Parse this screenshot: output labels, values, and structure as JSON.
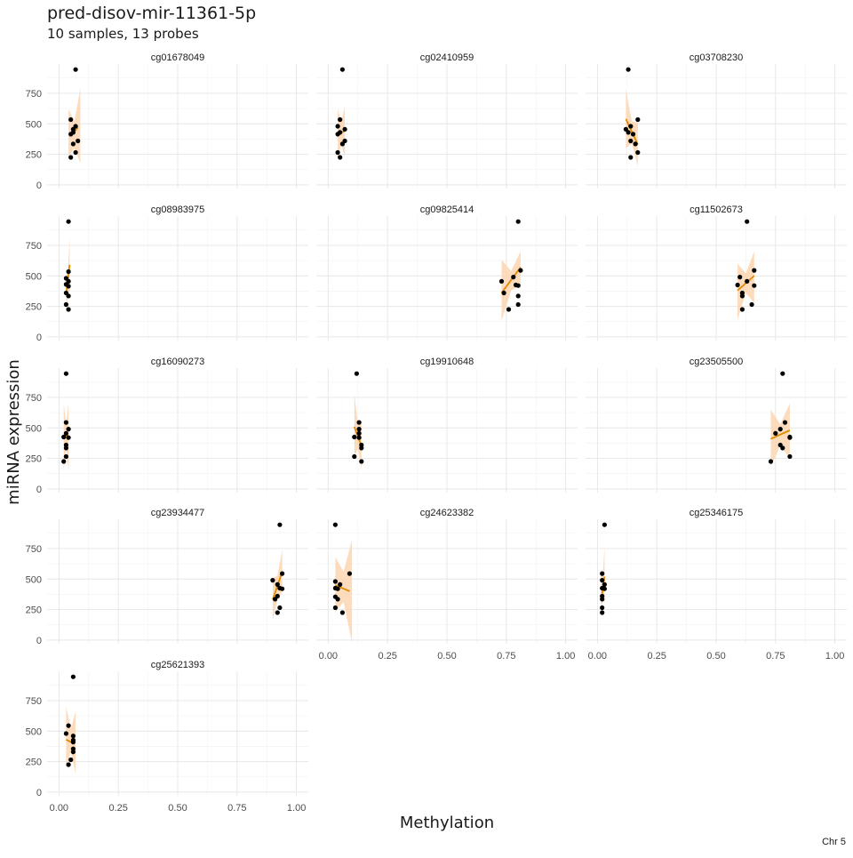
{
  "chart_data": {
    "type": "scatter",
    "title": "pred-disov-mir-11361-5p",
    "subtitle": "10 samples, 13 probes",
    "xlabel": "Methylation",
    "ylabel": "miRNA expression",
    "caption": "Chr 5",
    "xlim": [
      -0.05,
      1.05
    ],
    "ylim": [
      -30,
      990
    ],
    "x_ticks": [
      0.0,
      0.25,
      0.5,
      0.75,
      1.0
    ],
    "x_tick_labels": [
      "0.00",
      "0.25",
      "0.50",
      "0.75",
      "1.00"
    ],
    "y_ticks": [
      0,
      250,
      500,
      750
    ],
    "y_tick_labels": [
      "0",
      "250",
      "500",
      "750"
    ],
    "grid": true,
    "fit_color": "#e08a00",
    "band_color": "#fdd5b1",
    "point_color": "#000000",
    "panels": [
      {
        "name": "cg01678049",
        "points": [
          [
            0.07,
            945
          ],
          [
            0.05,
            535
          ],
          [
            0.07,
            480
          ],
          [
            0.06,
            455
          ],
          [
            0.06,
            430
          ],
          [
            0.05,
            415
          ],
          [
            0.08,
            360
          ],
          [
            0.06,
            335
          ],
          [
            0.07,
            265
          ],
          [
            0.05,
            225
          ]
        ],
        "fit": {
          "x0": 0.05,
          "y0": 400,
          "x1": 0.08,
          "y1": 470
        },
        "band": {
          "x0": 0.04,
          "x1": 0.09,
          "lo0": 230,
          "hi0": 620,
          "lo1": 180,
          "hi1": 790,
          "lomid": 300,
          "himid": 520
        }
      },
      {
        "name": "cg02410959",
        "points": [
          [
            0.06,
            945
          ],
          [
            0.05,
            535
          ],
          [
            0.04,
            480
          ],
          [
            0.07,
            455
          ],
          [
            0.05,
            430
          ],
          [
            0.04,
            415
          ],
          [
            0.07,
            360
          ],
          [
            0.06,
            335
          ],
          [
            0.04,
            265
          ],
          [
            0.05,
            225
          ]
        ],
        "fit": {
          "x0": 0.04,
          "y0": 420,
          "x1": 0.07,
          "y1": 440
        },
        "band": {
          "x0": 0.04,
          "x1": 0.07,
          "lo0": 220,
          "hi0": 620,
          "lo1": 230,
          "hi1": 640,
          "lomid": 330,
          "himid": 520
        }
      },
      {
        "name": "cg03708230",
        "points": [
          [
            0.13,
            945
          ],
          [
            0.17,
            535
          ],
          [
            0.12,
            455
          ],
          [
            0.14,
            480
          ],
          [
            0.13,
            430
          ],
          [
            0.15,
            415
          ],
          [
            0.14,
            360
          ],
          [
            0.16,
            335
          ],
          [
            0.17,
            265
          ],
          [
            0.14,
            225
          ]
        ],
        "fit": {
          "x0": 0.12,
          "y0": 540,
          "x1": 0.17,
          "y1": 330
        },
        "band": {
          "x0": 0.12,
          "x1": 0.17,
          "lo0": 300,
          "hi0": 780,
          "lo1": 150,
          "hi1": 510,
          "lomid": 340,
          "himid": 520
        }
      },
      {
        "name": "cg08983975",
        "points": [
          [
            0.04,
            945
          ],
          [
            0.04,
            535
          ],
          [
            0.03,
            480
          ],
          [
            0.04,
            455
          ],
          [
            0.03,
            430
          ],
          [
            0.04,
            415
          ],
          [
            0.03,
            360
          ],
          [
            0.04,
            335
          ],
          [
            0.03,
            265
          ],
          [
            0.04,
            225
          ]
        ],
        "fit": {
          "x0": 0.03,
          "y0": 350,
          "x1": 0.045,
          "y1": 590
        },
        "band": {
          "x0": 0.03,
          "x1": 0.045,
          "lo0": 200,
          "hi0": 500,
          "lo1": 380,
          "hi1": 820,
          "lomid": 330,
          "himid": 520
        }
      },
      {
        "name": "cg09825414",
        "points": [
          [
            0.8,
            945
          ],
          [
            0.81,
            545
          ],
          [
            0.78,
            490
          ],
          [
            0.73,
            455
          ],
          [
            0.79,
            425
          ],
          [
            0.8,
            420
          ],
          [
            0.74,
            360
          ],
          [
            0.8,
            335
          ],
          [
            0.8,
            265
          ],
          [
            0.76,
            225
          ]
        ],
        "fit": {
          "x0": 0.73,
          "y0": 360,
          "x1": 0.81,
          "y1": 570
        },
        "band": {
          "x0": 0.73,
          "x1": 0.81,
          "lo0": 130,
          "hi0": 630,
          "lo1": 420,
          "hi1": 700,
          "lomid": 380,
          "himid": 540
        }
      },
      {
        "name": "cg11502673",
        "points": [
          [
            0.63,
            945
          ],
          [
            0.66,
            545
          ],
          [
            0.6,
            490
          ],
          [
            0.63,
            455
          ],
          [
            0.59,
            425
          ],
          [
            0.66,
            420
          ],
          [
            0.61,
            360
          ],
          [
            0.61,
            335
          ],
          [
            0.65,
            265
          ],
          [
            0.61,
            225
          ]
        ],
        "fit": {
          "x0": 0.59,
          "y0": 380,
          "x1": 0.66,
          "y1": 500
        },
        "band": {
          "x0": 0.59,
          "x1": 0.66,
          "lo0": 140,
          "hi0": 600,
          "lo1": 280,
          "hi1": 700,
          "lomid": 360,
          "himid": 520
        }
      },
      {
        "name": "cg16090273",
        "points": [
          [
            0.03,
            945
          ],
          [
            0.03,
            545
          ],
          [
            0.04,
            490
          ],
          [
            0.03,
            455
          ],
          [
            0.02,
            425
          ],
          [
            0.04,
            420
          ],
          [
            0.03,
            360
          ],
          [
            0.03,
            335
          ],
          [
            0.03,
            265
          ],
          [
            0.02,
            225
          ]
        ],
        "fit": {
          "x0": 0.02,
          "y0": 420,
          "x1": 0.04,
          "y1": 440
        },
        "band": {
          "x0": 0.02,
          "x1": 0.04,
          "lo0": 150,
          "hi0": 700,
          "lo1": 150,
          "hi1": 700,
          "lomid": 330,
          "himid": 530
        }
      },
      {
        "name": "cg19910648",
        "points": [
          [
            0.12,
            945
          ],
          [
            0.13,
            545
          ],
          [
            0.13,
            490
          ],
          [
            0.13,
            455
          ],
          [
            0.11,
            425
          ],
          [
            0.13,
            420
          ],
          [
            0.14,
            360
          ],
          [
            0.14,
            335
          ],
          [
            0.11,
            265
          ],
          [
            0.14,
            225
          ]
        ],
        "fit": {
          "x0": 0.11,
          "y0": 510,
          "x1": 0.14,
          "y1": 350
        },
        "band": {
          "x0": 0.11,
          "x1": 0.14,
          "lo0": 260,
          "hi0": 780,
          "lo1": 160,
          "hi1": 560,
          "lomid": 330,
          "himid": 530
        }
      },
      {
        "name": "cg23505500",
        "points": [
          [
            0.78,
            945
          ],
          [
            0.79,
            545
          ],
          [
            0.77,
            490
          ],
          [
            0.75,
            455
          ],
          [
            0.81,
            425
          ],
          [
            0.81,
            420
          ],
          [
            0.77,
            360
          ],
          [
            0.78,
            335
          ],
          [
            0.81,
            265
          ],
          [
            0.73,
            225
          ]
        ],
        "fit": {
          "x0": 0.73,
          "y0": 410,
          "x1": 0.81,
          "y1": 480
        },
        "band": {
          "x0": 0.73,
          "x1": 0.81,
          "lo0": 180,
          "hi0": 650,
          "lo1": 250,
          "hi1": 700,
          "lomid": 360,
          "himid": 530
        }
      },
      {
        "name": "cg23934477",
        "points": [
          [
            0.93,
            945
          ],
          [
            0.94,
            545
          ],
          [
            0.9,
            490
          ],
          [
            0.92,
            455
          ],
          [
            0.93,
            425
          ],
          [
            0.94,
            420
          ],
          [
            0.92,
            360
          ],
          [
            0.91,
            335
          ],
          [
            0.93,
            265
          ],
          [
            0.92,
            225
          ]
        ],
        "fit": {
          "x0": 0.9,
          "y0": 330,
          "x1": 0.94,
          "y1": 560
        },
        "band": {
          "x0": 0.9,
          "x1": 0.94,
          "lo0": 160,
          "hi0": 500,
          "lo1": 400,
          "hi1": 740,
          "lomid": 330,
          "himid": 530
        }
      },
      {
        "name": "cg24623382",
        "points": [
          [
            0.03,
            945
          ],
          [
            0.09,
            545
          ],
          [
            0.03,
            480
          ],
          [
            0.05,
            455
          ],
          [
            0.03,
            425
          ],
          [
            0.04,
            420
          ],
          [
            0.03,
            355
          ],
          [
            0.04,
            335
          ],
          [
            0.03,
            265
          ],
          [
            0.06,
            225
          ]
        ],
        "fit": {
          "x0": 0.03,
          "y0": 450,
          "x1": 0.09,
          "y1": 400
        },
        "band": {
          "x0": 0.03,
          "x1": 0.1,
          "lo0": 230,
          "hi0": 680,
          "lo1": -20,
          "hi1": 820,
          "lomid": 310,
          "himid": 560
        }
      },
      {
        "name": "cg25346175",
        "points": [
          [
            0.03,
            945
          ],
          [
            0.02,
            545
          ],
          [
            0.02,
            490
          ],
          [
            0.03,
            455
          ],
          [
            0.02,
            425
          ],
          [
            0.03,
            420
          ],
          [
            0.02,
            360
          ],
          [
            0.02,
            335
          ],
          [
            0.02,
            265
          ],
          [
            0.02,
            225
          ]
        ],
        "fit": {
          "x0": 0.02,
          "y0": 380,
          "x1": 0.03,
          "y1": 520
        },
        "band": {
          "x0": 0.015,
          "x1": 0.03,
          "lo0": 180,
          "hi0": 580,
          "lo1": 300,
          "hi1": 760,
          "lomid": 330,
          "himid": 530
        }
      },
      {
        "name": "cg25621393",
        "points": [
          [
            0.06,
            945
          ],
          [
            0.04,
            545
          ],
          [
            0.03,
            480
          ],
          [
            0.06,
            460
          ],
          [
            0.06,
            425
          ],
          [
            0.06,
            410
          ],
          [
            0.06,
            355
          ],
          [
            0.06,
            330
          ],
          [
            0.05,
            265
          ],
          [
            0.04,
            225
          ]
        ],
        "fit": {
          "x0": 0.03,
          "y0": 430,
          "x1": 0.06,
          "y1": 400
        },
        "band": {
          "x0": 0.03,
          "x1": 0.07,
          "lo0": 200,
          "hi0": 700,
          "lo1": 150,
          "hi1": 660,
          "lomid": 330,
          "himid": 520
        }
      }
    ]
  }
}
